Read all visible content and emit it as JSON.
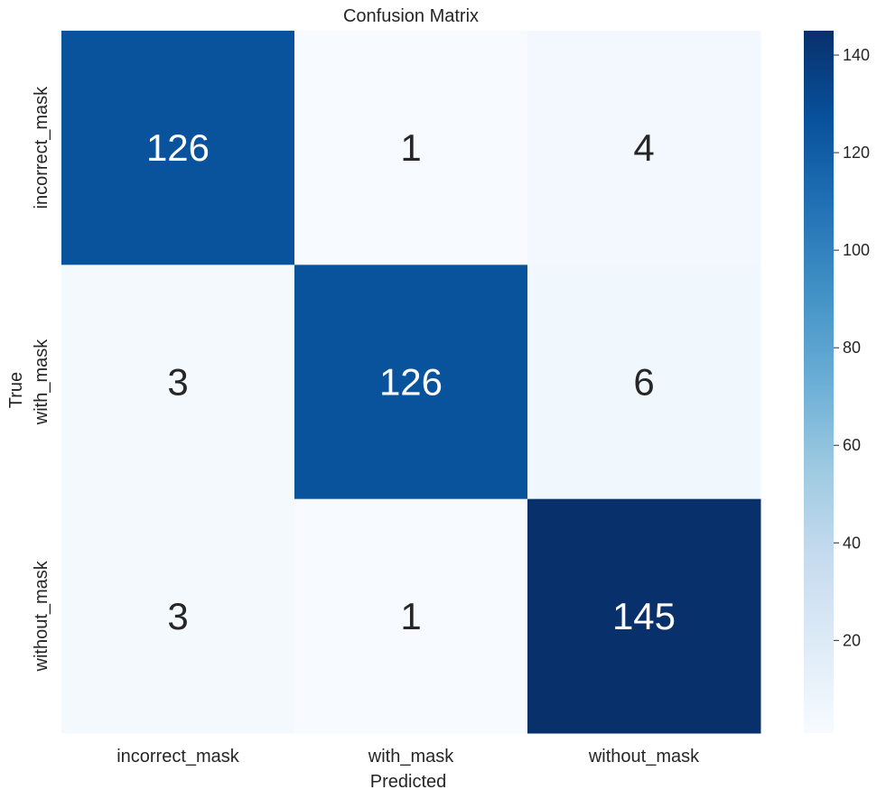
{
  "chart_data": {
    "type": "heatmap",
    "title": "Confusion Matrix",
    "xlabel": "Predicted",
    "ylabel": "True",
    "x_categories": [
      "incorrect_mask",
      "with_mask",
      "without_mask"
    ],
    "y_categories": [
      "incorrect_mask",
      "with_mask",
      "without_mask"
    ],
    "matrix": [
      [
        126,
        1,
        4
      ],
      [
        3,
        126,
        6
      ],
      [
        3,
        1,
        145
      ]
    ],
    "colormap": "Blues",
    "color_range": [
      1,
      145
    ],
    "colorbar": {
      "ticks": [
        20,
        40,
        60,
        80,
        100,
        120,
        140
      ]
    },
    "annotations": true,
    "grid": false
  }
}
